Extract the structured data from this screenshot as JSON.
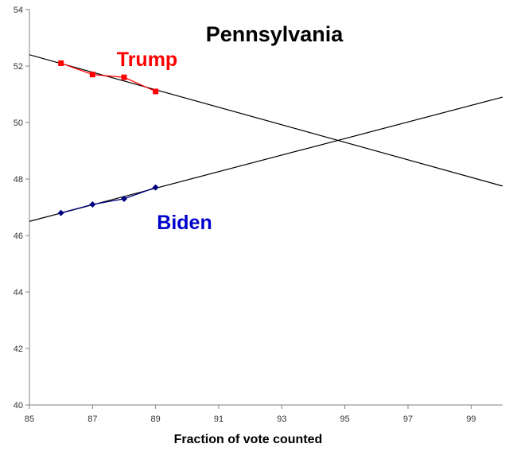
{
  "chart_data": {
    "type": "scatter",
    "title": "Pennsylvania",
    "xlabel": "Fraction of vote counted",
    "ylabel": "",
    "xlim": [
      85,
      100
    ],
    "ylim": [
      40,
      54
    ],
    "x_ticks": [
      "85",
      "87",
      "89",
      "91",
      "93",
      "95",
      "97",
      "99"
    ],
    "y_ticks": [
      "40",
      "42",
      "44",
      "46",
      "48",
      "50",
      "52",
      "54"
    ],
    "grid": false,
    "series": [
      {
        "name": "Trump",
        "color": "#ff0000",
        "marker": "square",
        "x": [
          86,
          87,
          88,
          89
        ],
        "y": [
          52.1,
          51.7,
          51.6,
          51.1
        ],
        "trendline": {
          "x": [
            85,
            100
          ],
          "y": [
            52.4,
            47.75
          ]
        }
      },
      {
        "name": "Biden",
        "color": "#0000cc",
        "marker_color": "#000080",
        "marker": "diamond",
        "x": [
          86,
          87,
          88,
          89
        ],
        "y": [
          46.8,
          47.1,
          47.3,
          47.7
        ],
        "trendline": {
          "x": [
            85,
            100
          ],
          "y": [
            46.5,
            50.9
          ]
        }
      }
    ]
  }
}
